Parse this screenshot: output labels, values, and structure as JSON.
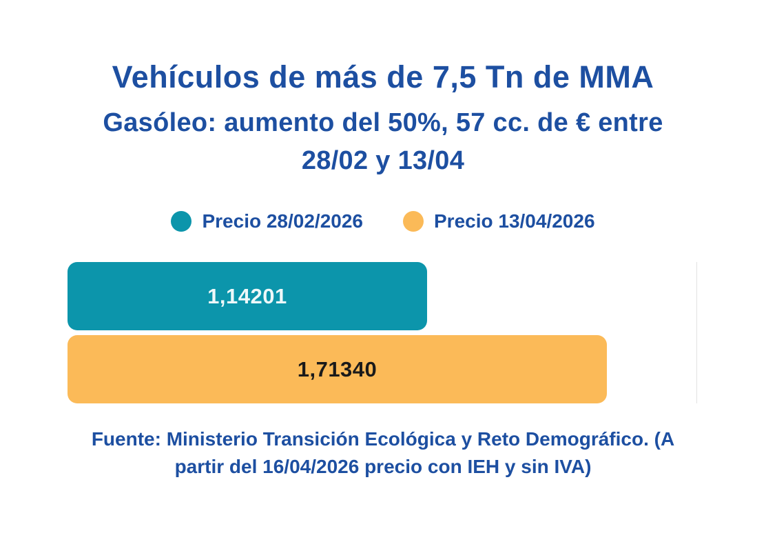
{
  "header": {
    "title": "Vehículos de más de 7,5 Tn de MMA",
    "subtitle_line1": "Gasóleo: aumento del 50%, 57 cc. de € entre",
    "subtitle_line2": "28/02 y 13/04"
  },
  "legend": {
    "items": [
      {
        "label": "Precio 28/02/2026",
        "color": "#0c95ab"
      },
      {
        "label": "Precio 13/04/2026",
        "color": "#fbba58"
      }
    ]
  },
  "footer": {
    "line1": "Fuente: Ministerio Transición Ecológica y Reto Demográfico. (A",
    "line2": "partir del 16/04/2026 precio con IEH y sin IVA)"
  },
  "colors": {
    "background": "#ffffff",
    "blue": "#1d4fa1",
    "teal": "#0c95ab",
    "orange": "#fbba58",
    "gridline": "#e2e2e2",
    "bar_value_light": "#eef8f9",
    "bar_value_dark": "#1a1a1a"
  },
  "chart_data": {
    "type": "bar",
    "orientation": "horizontal",
    "title": "Vehículos de más de 7,5 Tn de MMA",
    "subtitle": "Gasóleo: aumento del 50%, 57 cc. de € entre 28/02 y 13/04",
    "categories": [
      "Precio 28/02/2026",
      "Precio 13/04/2026"
    ],
    "values": [
      1.14201,
      1.7134
    ],
    "value_labels": [
      "1,14201",
      "1,71340"
    ],
    "series_colors": [
      "#0c95ab",
      "#fbba58"
    ],
    "xlim": [
      0,
      2
    ],
    "grid": "right-edge-line-only",
    "legend_position": "top",
    "source_note": "Fuente: Ministerio Transición Ecológica y Reto Demográfico. (A partir del 16/04/2026 precio con IEH y sin IVA)"
  }
}
